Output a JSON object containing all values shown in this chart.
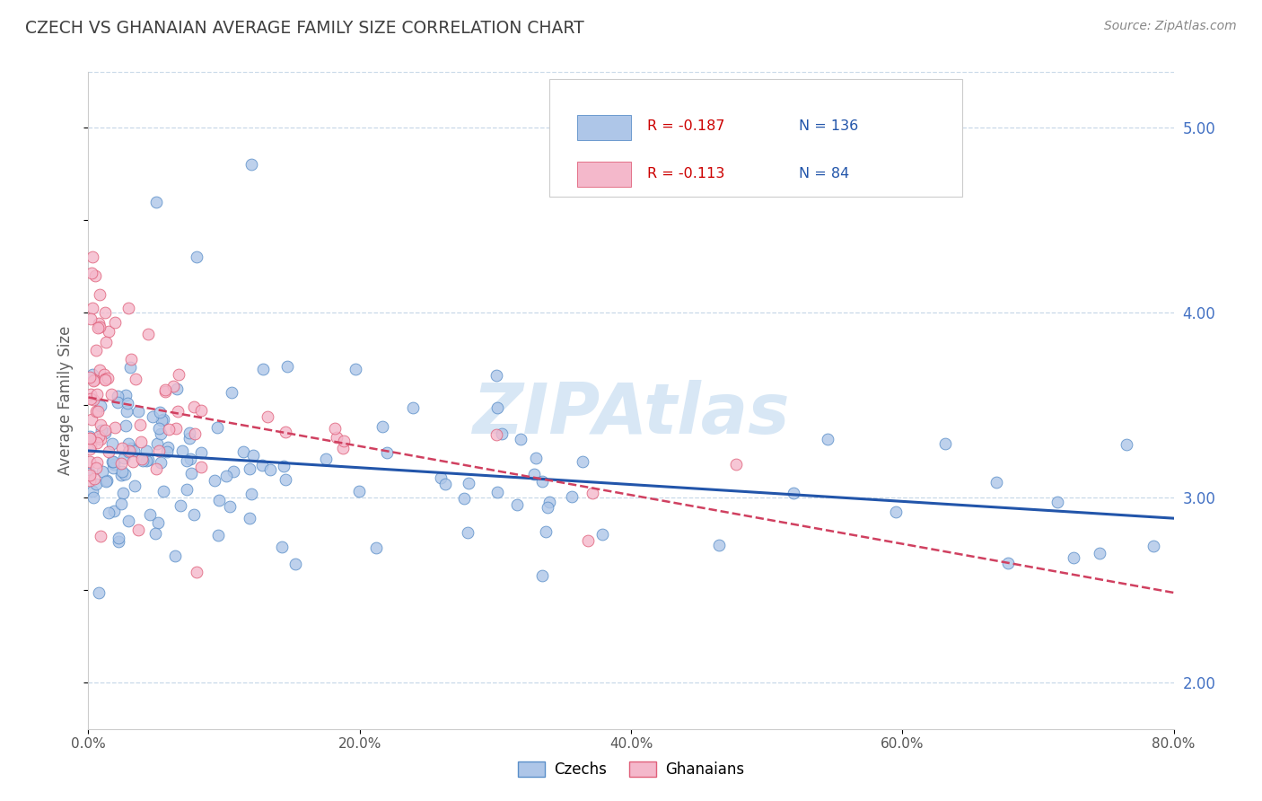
{
  "title": "CZECH VS GHANAIAN AVERAGE FAMILY SIZE CORRELATION CHART",
  "source_text": "Source: ZipAtlas.com",
  "ylabel": "Average Family Size",
  "xlim": [
    0.0,
    0.8
  ],
  "ylim": [
    1.75,
    5.3
  ],
  "yticks_right": [
    2.0,
    3.0,
    4.0,
    5.0
  ],
  "xtick_labels": [
    "0.0%",
    "20.0%",
    "40.0%",
    "60.0%",
    "80.0%"
  ],
  "xtick_values": [
    0.0,
    0.2,
    0.4,
    0.6,
    0.8
  ],
  "series": [
    {
      "name": "Czechs",
      "R": -0.187,
      "N": 136,
      "marker_color": "#aec6e8",
      "edge_color": "#5b8fc9",
      "line_color": "#2255aa",
      "line_style": "-"
    },
    {
      "name": "Ghanaians",
      "R": -0.113,
      "N": 84,
      "marker_color": "#f4b8cb",
      "edge_color": "#e0607a",
      "line_color": "#d04060",
      "line_style": "--"
    }
  ],
  "watermark": "ZIPAtlas",
  "watermark_color": "#b8d4ee",
  "background_color": "#ffffff",
  "grid_color": "#c8d8e8",
  "title_color": "#404040",
  "axis_label_color": "#606060",
  "right_axis_color": "#4472c4",
  "legend_R_color": "#cc0000",
  "legend_N_color": "#2255aa"
}
